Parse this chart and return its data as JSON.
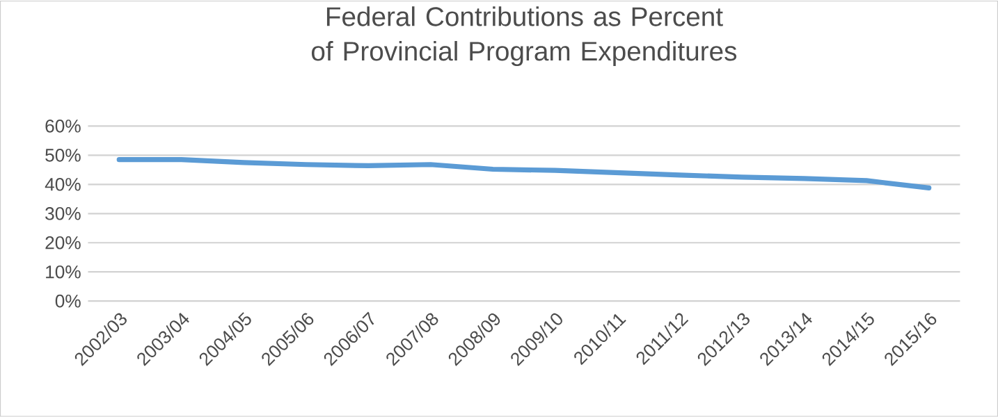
{
  "chart_data": {
    "type": "line",
    "title": "Federal Contributions as Percent of Provincial Program Expenditures",
    "categories": [
      "2002/03",
      "2003/04",
      "2004/05",
      "2005/06",
      "2006/07",
      "2007/08",
      "2008/09",
      "2009/10",
      "2010/11",
      "2011/12",
      "2012/13",
      "2013/14",
      "2014/15",
      "2015/16"
    ],
    "series": [
      {
        "color": "#5b9bd5",
        "values": [
          48.5,
          48.5,
          47.5,
          46.8,
          46.4,
          46.8,
          45.2,
          44.8,
          44.0,
          43.2,
          42.5,
          42.0,
          41.3,
          38.8
        ]
      }
    ],
    "ylim": [
      0,
      60
    ],
    "yticks": [
      {
        "value": 0,
        "label": "0%"
      },
      {
        "value": 10,
        "label": "10%"
      },
      {
        "value": 20,
        "label": "20%"
      },
      {
        "value": 30,
        "label": "30%"
      },
      {
        "value": 40,
        "label": "40%"
      },
      {
        "value": 50,
        "label": "50%"
      },
      {
        "value": 60,
        "label": "60%"
      }
    ],
    "grid": "y",
    "legend": false,
    "marker": "none",
    "line_style": "solid"
  }
}
